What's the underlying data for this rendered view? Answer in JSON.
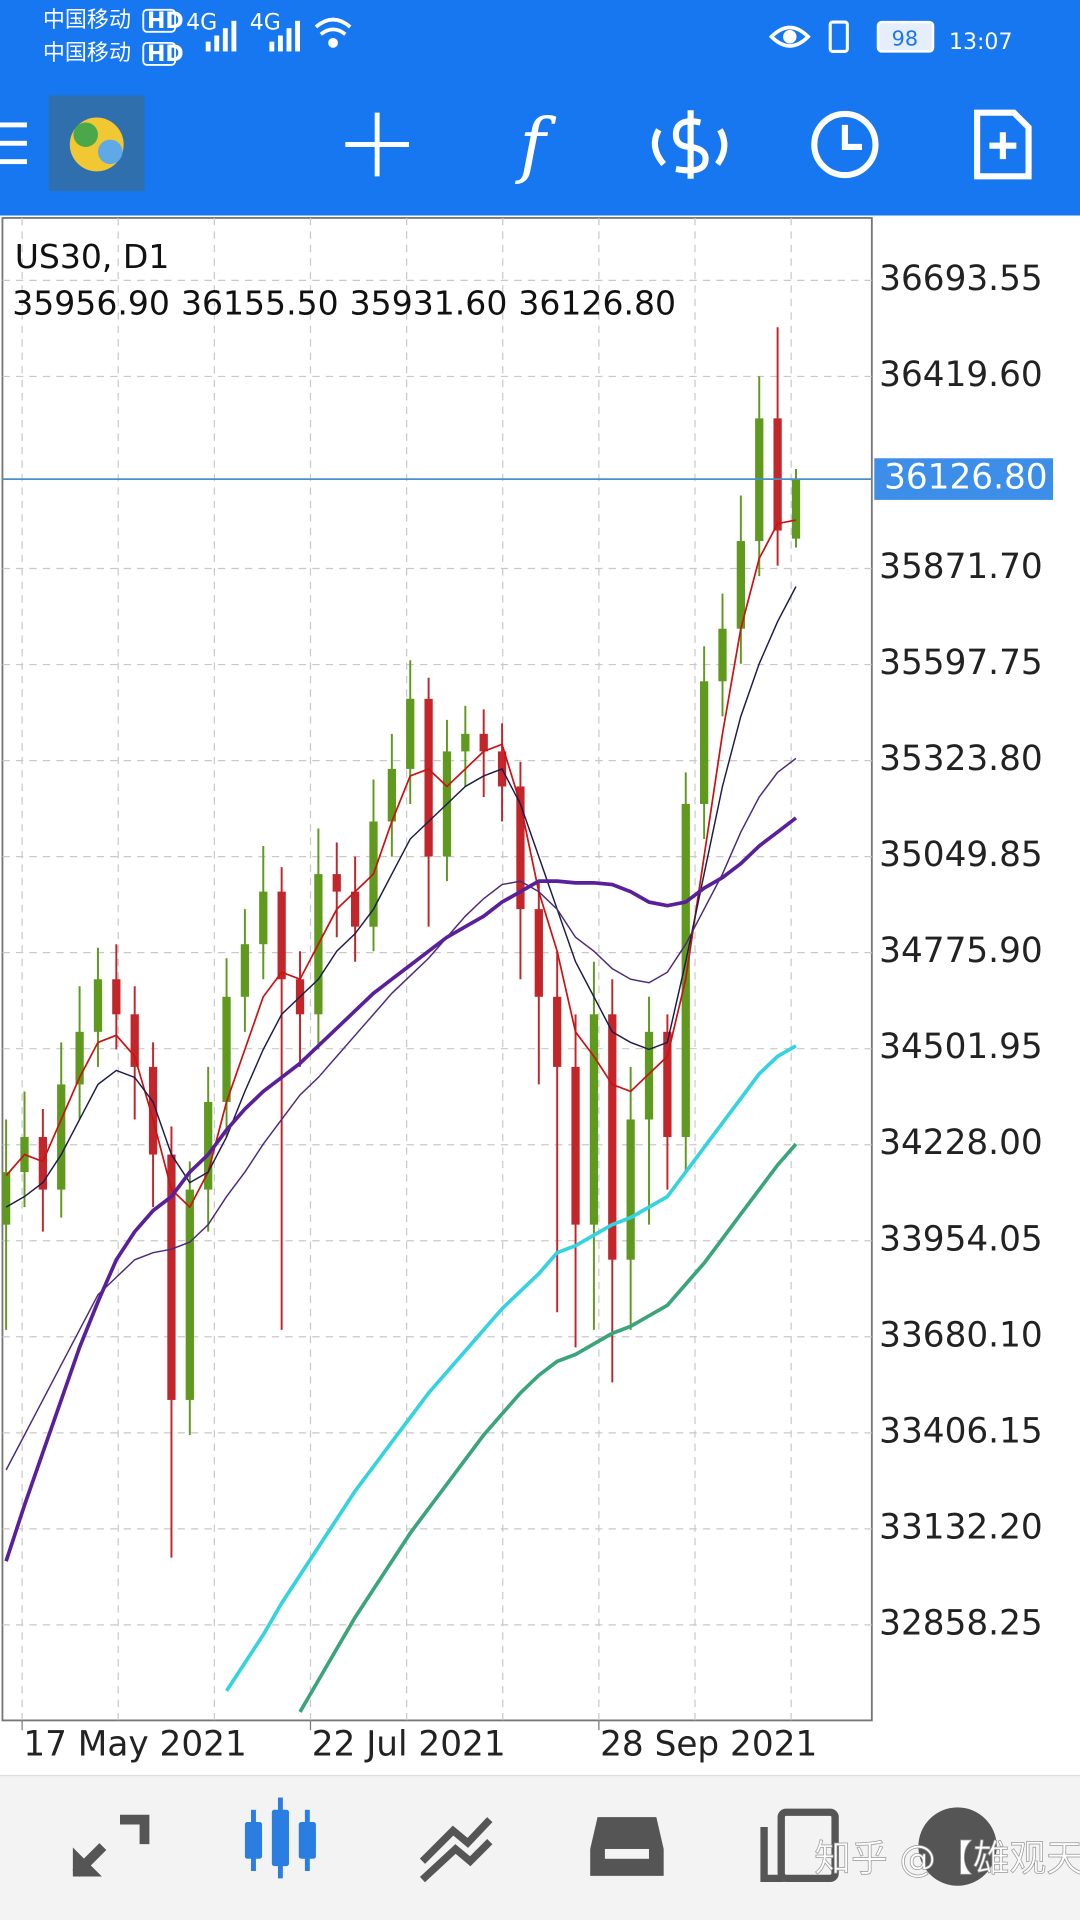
{
  "status_bar": {
    "carriers": [
      "中国移动",
      "中国移动"
    ],
    "hd_badges": [
      "HD",
      "HD"
    ],
    "network": [
      "4G",
      "4G"
    ],
    "battery": "98",
    "time": "13:07"
  },
  "toolbar": {
    "function_icon": "f"
  },
  "watermark": "知乎 @【雄观天下】",
  "chart_data": {
    "type": "candlestick",
    "title": "US30, D1",
    "last_ohlc_labels": [
      "35956.90",
      "36155.50",
      "35931.60",
      "36126.80"
    ],
    "open": [
      34000,
      34150,
      34250,
      34100,
      34400,
      34550,
      34700,
      34600,
      34450,
      34200,
      33500,
      34100,
      34350,
      34650,
      34800,
      34950,
      34700,
      34600,
      35000,
      34950,
      34850,
      35150,
      35300,
      35500,
      35050,
      35350,
      35400,
      35350,
      35250,
      34900,
      34650,
      34450,
      34000,
      34600,
      33900,
      34300,
      34550,
      34250,
      35200,
      35550,
      35700,
      35950,
      36300,
      35956.9
    ],
    "high": [
      34300,
      34380,
      34330,
      34520,
      34680,
      34790,
      34800,
      34680,
      34520,
      34280,
      34180,
      34450,
      34760,
      34900,
      35080,
      35020,
      34780,
      35130,
      35090,
      35050,
      35270,
      35400,
      35610,
      35560,
      35440,
      35480,
      35470,
      35430,
      35320,
      34980,
      34780,
      34600,
      34750,
      34700,
      34450,
      34650,
      34600,
      35290,
      35650,
      35800,
      36080,
      36420,
      36560,
      36155.5
    ],
    "low": [
      33700,
      34050,
      33980,
      34020,
      34300,
      34450,
      34500,
      34300,
      34050,
      33050,
      33400,
      33980,
      34250,
      34550,
      34700,
      33700,
      34450,
      34500,
      34820,
      34750,
      34780,
      35050,
      35200,
      34850,
      34980,
      35250,
      35220,
      35150,
      34700,
      34400,
      33750,
      33650,
      33700,
      33550,
      33700,
      34000,
      34100,
      34150,
      35100,
      35450,
      35600,
      35850,
      35880,
      35931.6
    ],
    "close": [
      34150,
      34250,
      34100,
      34400,
      34550,
      34700,
      34600,
      34450,
      34200,
      33500,
      34100,
      34350,
      34650,
      34800,
      34950,
      34700,
      34600,
      35000,
      34950,
      34850,
      35150,
      35300,
      35500,
      35050,
      35350,
      35400,
      35350,
      35250,
      34900,
      34650,
      34450,
      34000,
      34600,
      33900,
      34300,
      34550,
      34250,
      35200,
      35550,
      35700,
      35950,
      36300,
      35980,
      36126.8
    ],
    "up_color": "#5f9a1e",
    "down_color": "#c3262a",
    "lines": [
      {
        "color": "#c81414",
        "width": 1.4,
        "values": [
          34140,
          34200,
          34180,
          34300,
          34420,
          34520,
          34540,
          34480,
          34300,
          34100,
          34050,
          34150,
          34350,
          34500,
          34650,
          34720,
          34700,
          34800,
          34900,
          34950,
          35000,
          35150,
          35280,
          35300,
          35250,
          35300,
          35350,
          35370,
          35200,
          34950,
          34780,
          34550,
          34480,
          34400,
          34380,
          34430,
          34480,
          34700,
          35050,
          35400,
          35700,
          35900,
          36000,
          36010
        ]
      },
      {
        "color": "#1c1c4a",
        "width": 1.2,
        "values": [
          34050,
          34080,
          34120,
          34200,
          34300,
          34400,
          34440,
          34420,
          34350,
          34200,
          34120,
          34150,
          34250,
          34380,
          34500,
          34600,
          34650,
          34700,
          34780,
          34830,
          34900,
          35000,
          35100,
          35150,
          35200,
          35250,
          35280,
          35300,
          35200,
          35050,
          34900,
          34750,
          34650,
          34550,
          34520,
          34500,
          34520,
          34750,
          35000,
          35250,
          35450,
          35600,
          35720,
          35820
        ]
      },
      {
        "color": "#4b2a7a",
        "width": 1.2,
        "values": [
          33300,
          33400,
          33500,
          33600,
          33700,
          33800,
          33850,
          33900,
          33920,
          33930,
          33950,
          34000,
          34080,
          34150,
          34230,
          34300,
          34370,
          34420,
          34480,
          34540,
          34600,
          34660,
          34710,
          34760,
          34820,
          34880,
          34930,
          34970,
          34980,
          34950,
          34900,
          34820,
          34780,
          34730,
          34700,
          34690,
          34720,
          34800,
          34900,
          35000,
          35120,
          35220,
          35290,
          35330
        ]
      },
      {
        "color": "#5a1f9a",
        "width": 3,
        "values": [
          33040,
          33200,
          33350,
          33500,
          33650,
          33780,
          33900,
          33980,
          34040,
          34080,
          34150,
          34200,
          34270,
          34330,
          34380,
          34420,
          34460,
          34510,
          34560,
          34610,
          34660,
          34700,
          34740,
          34780,
          34820,
          34850,
          34880,
          34920,
          34950,
          34980,
          34980,
          34975,
          34975,
          34970,
          34950,
          34920,
          34910,
          34920,
          34960,
          34990,
          35030,
          35080,
          35120,
          35160
        ]
      },
      {
        "color": "#35d3e0",
        "width": 3,
        "values": [
          null,
          null,
          null,
          null,
          null,
          null,
          null,
          null,
          null,
          null,
          null,
          null,
          32670,
          32750,
          32830,
          32920,
          33000,
          33080,
          33160,
          33240,
          33310,
          33380,
          33450,
          33520,
          33580,
          33640,
          33700,
          33760,
          33810,
          33860,
          33920,
          33940,
          33970,
          34000,
          34020,
          34050,
          34080,
          34150,
          34220,
          34290,
          34360,
          34430,
          34480,
          34510
        ]
      },
      {
        "color": "#3aa57a",
        "width": 3,
        "values": [
          null,
          null,
          null,
          null,
          null,
          null,
          null,
          null,
          null,
          null,
          null,
          null,
          null,
          null,
          null,
          null,
          32610,
          32700,
          32790,
          32880,
          32960,
          33040,
          33120,
          33190,
          33260,
          33330,
          33400,
          33460,
          33520,
          33570,
          33610,
          33630,
          33660,
          33690,
          33710,
          33740,
          33770,
          33830,
          33890,
          33960,
          34030,
          34100,
          34170,
          34230
        ]
      }
    ],
    "current_price": {
      "value": 36126.8,
      "label": "36126.80"
    },
    "xlim": [
      -0.2,
      47.13
    ],
    "xticks": [
      {
        "value": 0.87,
        "label": "17 May 2021"
      },
      {
        "value": 16.57,
        "label": "22 Jul 2021"
      },
      {
        "value": 32.27,
        "label": "28 Sep 2021"
      }
    ],
    "ylim": [
      32585.8,
      36871.7
    ],
    "yticks": [
      36693.55,
      {
        "value": 36419.6,
        "label": "36419.60"
      },
      {
        "value": 35871.7,
        "label": "35871.70"
      },
      35597.75,
      {
        "value": 35323.8,
        "label": "35323.80"
      },
      35049.85,
      {
        "value": 34775.9,
        "label": "34775.90"
      },
      34501.95,
      {
        "value": 34228,
        "label": "34228.00"
      },
      33954.05,
      {
        "value": 33680.1,
        "label": "33680.10"
      },
      33406.15,
      {
        "value": 33132.2,
        "label": "33132.20"
      },
      32858.25
    ],
    "grid": true
  }
}
